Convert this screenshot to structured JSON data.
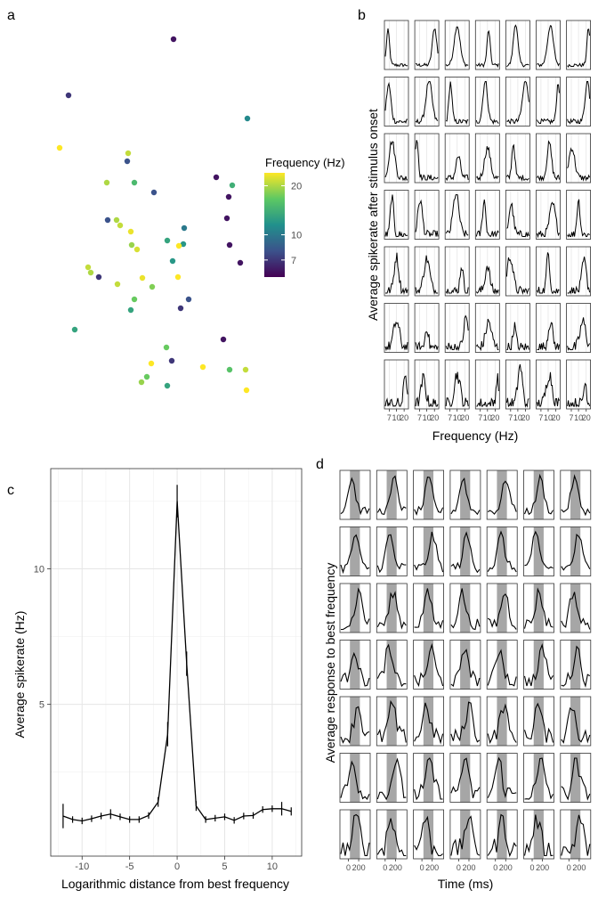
{
  "panels": {
    "a": "a",
    "b": "b",
    "c": "c",
    "d": "d"
  },
  "chart_data": [
    {
      "id": "a",
      "type": "scatter",
      "legend": {
        "title": "Frequency (Hz)",
        "ticks": [
          7,
          10,
          20
        ],
        "tick_labels": [
          "7",
          "10",
          "20"
        ],
        "range": [
          5.5,
          24
        ],
        "colors": [
          "#440154",
          "#3b528b",
          "#21908c",
          "#5dc863",
          "#fde725"
        ],
        "placement": "right"
      },
      "points": [
        {
          "x": 195,
          "y": 44,
          "f": 6
        },
        {
          "x": 77,
          "y": 107,
          "f": 7
        },
        {
          "x": 278,
          "y": 133,
          "f": 11
        },
        {
          "x": 67,
          "y": 166,
          "f": 24
        },
        {
          "x": 144,
          "y": 172,
          "f": 21
        },
        {
          "x": 143,
          "y": 181,
          "f": 8
        },
        {
          "x": 243,
          "y": 199,
          "f": 6
        },
        {
          "x": 120,
          "y": 205,
          "f": 20
        },
        {
          "x": 151,
          "y": 205,
          "f": 15
        },
        {
          "x": 261,
          "y": 208,
          "f": 14
        },
        {
          "x": 173,
          "y": 216,
          "f": 8
        },
        {
          "x": 257,
          "y": 221,
          "f": 6
        },
        {
          "x": 121,
          "y": 247,
          "f": 8
        },
        {
          "x": 131,
          "y": 247,
          "f": 20
        },
        {
          "x": 255,
          "y": 245,
          "f": 6
        },
        {
          "x": 135,
          "y": 253,
          "f": 21
        },
        {
          "x": 207,
          "y": 256,
          "f": 10
        },
        {
          "x": 147,
          "y": 260,
          "f": 23
        },
        {
          "x": 188,
          "y": 270,
          "f": 13
        },
        {
          "x": 206,
          "y": 274,
          "f": 12
        },
        {
          "x": 148,
          "y": 275,
          "f": 19
        },
        {
          "x": 154,
          "y": 280,
          "f": 22
        },
        {
          "x": 201,
          "y": 276,
          "f": 24
        },
        {
          "x": 258,
          "y": 275,
          "f": 6
        },
        {
          "x": 194,
          "y": 293,
          "f": 12
        },
        {
          "x": 99,
          "y": 300,
          "f": 21
        },
        {
          "x": 102,
          "y": 306,
          "f": 20
        },
        {
          "x": 270,
          "y": 295,
          "f": 6
        },
        {
          "x": 111,
          "y": 311,
          "f": 7
        },
        {
          "x": 160,
          "y": 312,
          "f": 23
        },
        {
          "x": 200,
          "y": 311,
          "f": 24
        },
        {
          "x": 132,
          "y": 319,
          "f": 21
        },
        {
          "x": 171,
          "y": 322,
          "f": 18
        },
        {
          "x": 212,
          "y": 336,
          "f": 8
        },
        {
          "x": 151,
          "y": 336,
          "f": 17
        },
        {
          "x": 147,
          "y": 348,
          "f": 13
        },
        {
          "x": 203,
          "y": 346,
          "f": 7
        },
        {
          "x": 84,
          "y": 370,
          "f": 13
        },
        {
          "x": 251,
          "y": 381,
          "f": 6
        },
        {
          "x": 187,
          "y": 390,
          "f": 17
        },
        {
          "x": 193,
          "y": 405,
          "f": 7
        },
        {
          "x": 170,
          "y": 408,
          "f": 24
        },
        {
          "x": 228,
          "y": 412,
          "f": 24
        },
        {
          "x": 258,
          "y": 415,
          "f": 16
        },
        {
          "x": 276,
          "y": 415,
          "f": 21
        },
        {
          "x": 165,
          "y": 423,
          "f": 17
        },
        {
          "x": 159,
          "y": 429,
          "f": 19
        },
        {
          "x": 188,
          "y": 433,
          "f": 13
        },
        {
          "x": 277,
          "y": 438,
          "f": 24
        }
      ]
    },
    {
      "id": "b",
      "type": "line",
      "layout": "small-multiples 7x7",
      "xlabel": "Frequency (Hz)",
      "ylabel": "Average spikerate after stimulus onset",
      "x_tick_labels": [
        "7",
        "10",
        "20"
      ],
      "x_ticks_rel": [
        0.2,
        0.5,
        0.82
      ],
      "grid": true,
      "peaks": [
        [
          [
            0.12,
            0.8
          ],
          [
            0.85,
            0.85
          ],
          [
            0.5,
            0.9
          ],
          [
            0.55,
            0.8
          ],
          [
            0.4,
            0.95
          ],
          [
            0.6,
            0.9
          ],
          [
            0.95,
            0.85
          ]
        ],
        [
          [
            0.15,
            0.85
          ],
          [
            0.6,
            0.95
          ],
          [
            0.2,
            0.9
          ],
          [
            0.4,
            0.95
          ],
          [
            0.85,
            0.95
          ],
          [
            0.95,
            0.9
          ],
          [
            0.9,
            0.95
          ]
        ],
        [
          [
            0.3,
            0.85
          ],
          [
            0.05,
            0.9
          ],
          [
            0.55,
            0.5
          ],
          [
            0.5,
            0.7
          ],
          [
            0.3,
            0.8
          ],
          [
            0.55,
            0.8
          ],
          [
            0.2,
            0.7
          ]
        ],
        [
          [
            0.3,
            0.9
          ],
          [
            0.2,
            0.8
          ],
          [
            0.45,
            0.95
          ],
          [
            0.35,
            0.8
          ],
          [
            0.2,
            0.7
          ],
          [
            0.7,
            0.7
          ],
          [
            0.5,
            0.8
          ]
        ],
        [
          [
            0.5,
            0.8
          ],
          [
            0.5,
            0.75
          ],
          [
            0.7,
            0.6
          ],
          [
            0.5,
            0.6
          ],
          [
            0.15,
            0.8
          ],
          [
            0.5,
            0.9
          ],
          [
            0.75,
            0.7
          ]
        ],
        [
          [
            0.5,
            0.6
          ],
          [
            0.5,
            0.5
          ],
          [
            0.9,
            0.7
          ],
          [
            0.55,
            0.6
          ],
          [
            0.35,
            0.5
          ],
          [
            0.6,
            0.6
          ],
          [
            0.7,
            0.6
          ]
        ],
        [
          [
            0.9,
            0.7
          ],
          [
            0.35,
            0.6
          ],
          [
            0.5,
            0.7
          ],
          [
            0.95,
            0.6
          ],
          [
            0.6,
            0.9
          ],
          [
            0.55,
            0.7
          ],
          [
            0.8,
            0.5
          ]
        ]
      ]
    },
    {
      "id": "c",
      "type": "line",
      "xlabel": "Logarithmic distance from best frequency",
      "ylabel": "Average spikerate (Hz)",
      "xlim": [
        -13.3,
        13.1
      ],
      "ylim": [
        -0.6,
        13.7
      ],
      "x_ticks": [
        -10,
        -5,
        0,
        5,
        10
      ],
      "y_ticks": [
        5,
        10
      ],
      "grid": true,
      "x": [
        -12,
        -11,
        -10,
        -9,
        -8,
        -7,
        -6,
        -5,
        -4,
        -3,
        -2,
        -1,
        0,
        1,
        2,
        3,
        4,
        5,
        6,
        7,
        8,
        9,
        10,
        11,
        12
      ],
      "y": [
        0.88,
        0.75,
        0.7,
        0.78,
        0.88,
        0.95,
        0.85,
        0.75,
        0.75,
        0.9,
        1.4,
        3.9,
        12.5,
        6.5,
        1.25,
        0.75,
        0.8,
        0.85,
        0.72,
        0.88,
        0.9,
        1.12,
        1.15,
        1.15,
        1.05
      ],
      "err": [
        0.45,
        0.12,
        0.12,
        0.12,
        0.12,
        0.18,
        0.12,
        0.12,
        0.12,
        0.12,
        0.18,
        0.45,
        0.6,
        0.45,
        0.18,
        0.12,
        0.12,
        0.12,
        0.12,
        0.12,
        0.12,
        0.12,
        0.12,
        0.25,
        0.15
      ]
    },
    {
      "id": "d",
      "type": "line",
      "layout": "small-multiples 7x7",
      "xlabel": "Time (ms)",
      "ylabel": "Average response to best frequency",
      "x_tick_labels": [
        "0",
        "200"
      ],
      "x_ticks_rel": [
        0.28,
        0.62
      ],
      "shaded_rel": [
        0.33,
        0.66
      ]
    }
  ]
}
